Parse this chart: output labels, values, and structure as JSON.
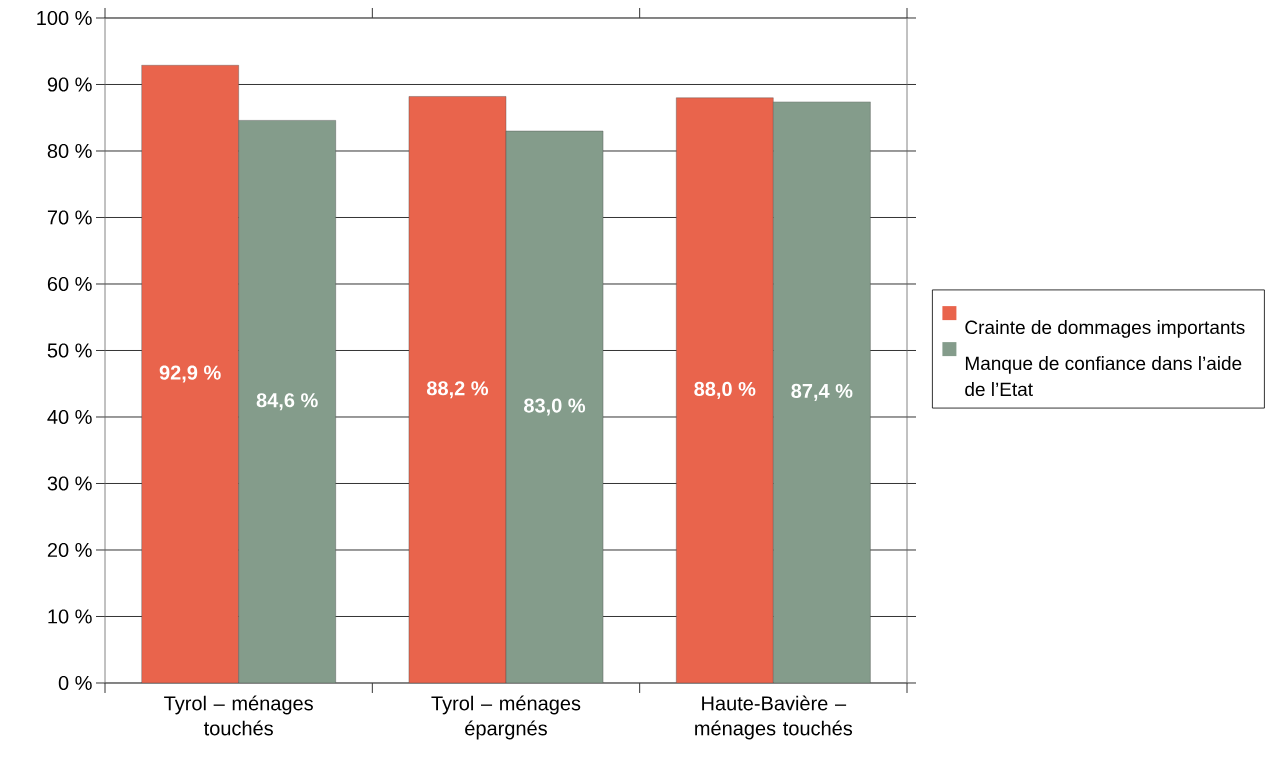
{
  "chart_data": {
    "type": "bar",
    "categories": [
      "Tyrol – ménages touchés",
      "Tyrol – ménages épargnés",
      "Haute-Bavière – ménages touchés"
    ],
    "series": [
      {
        "name": "Crainte de dommages importants",
        "color": "#e9644c",
        "values": [
          92.9,
          88.2,
          88.0
        ],
        "value_labels": [
          "92,9 %",
          "88,2 %",
          "88,0 %"
        ]
      },
      {
        "name": "Manque de confiance dans l’aide de l’Etat",
        "color": "#849c8b",
        "values": [
          84.6,
          83.0,
          87.4
        ],
        "value_labels": [
          "84,6 %",
          "83,0 %",
          "87,4 %"
        ]
      }
    ],
    "ylim": [
      0,
      100
    ],
    "yticks": [
      {
        "value": 0,
        "label": "0 %"
      },
      {
        "value": 10,
        "label": "10 %"
      },
      {
        "value": 20,
        "label": "20 %"
      },
      {
        "value": 30,
        "label": "30 %"
      },
      {
        "value": 40,
        "label": "40 %"
      },
      {
        "value": 50,
        "label": "50 %"
      },
      {
        "value": 60,
        "label": "60 %"
      },
      {
        "value": 70,
        "label": "70 %"
      },
      {
        "value": 80,
        "label": "80 %"
      },
      {
        "value": 90,
        "label": "90 %"
      },
      {
        "value": 100,
        "label": "100 %"
      }
    ],
    "grid": "y",
    "legend": "right"
  }
}
